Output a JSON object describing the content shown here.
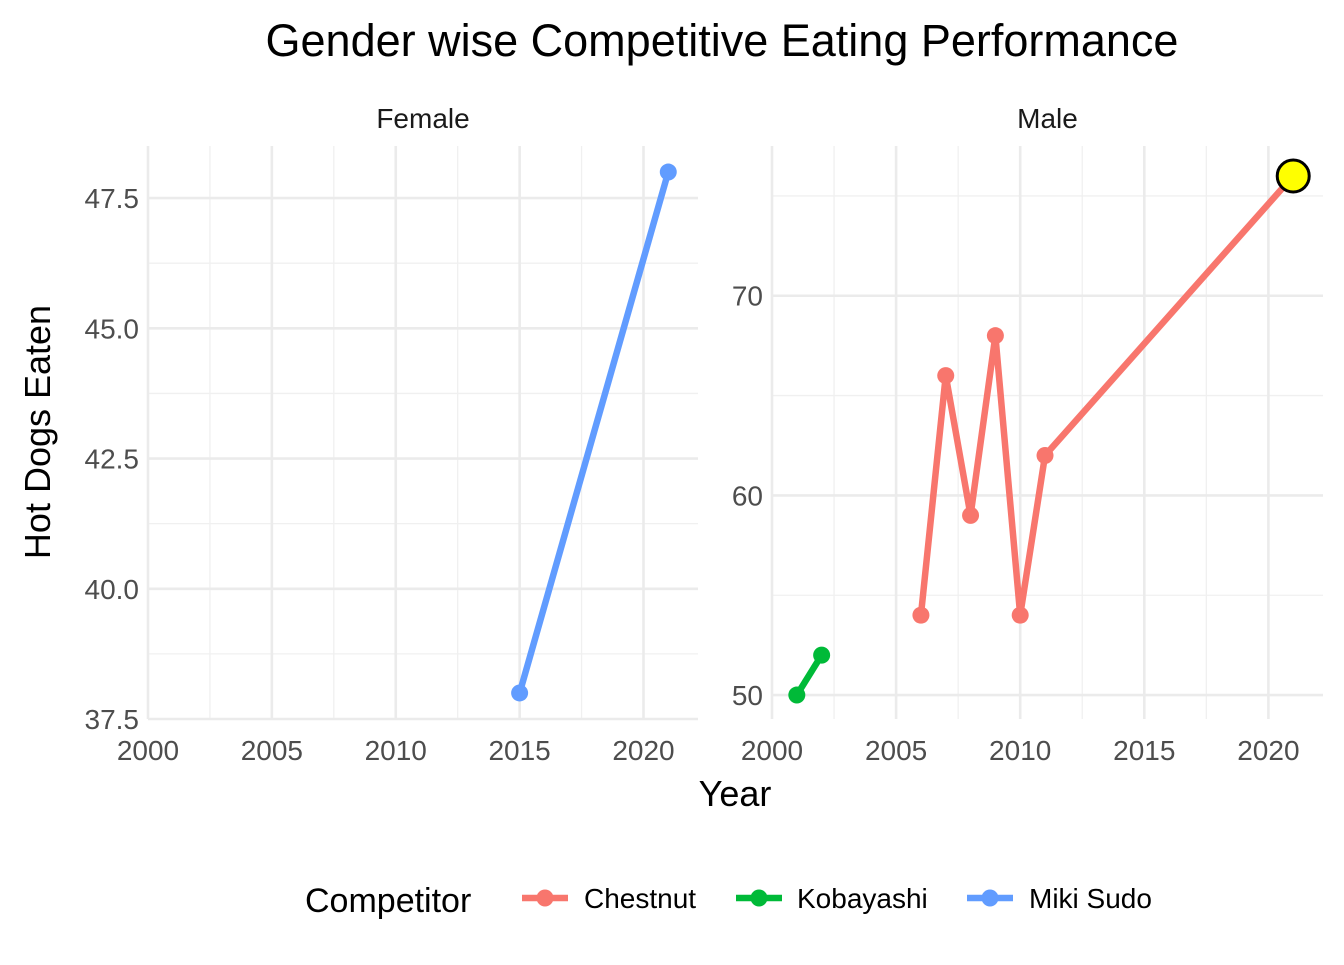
{
  "chart_data": {
    "type": "line",
    "title": "Gender wise Competitive Eating Performance",
    "xlabel": "Year",
    "ylabel": "Hot Dogs Eaten",
    "legend": {
      "title": "Competitor",
      "position": "bottom",
      "items": [
        {
          "name": "Chestnut",
          "color": "#F8766D"
        },
        {
          "name": "Kobayashi",
          "color": "#00BA38"
        },
        {
          "name": "Miki Sudo",
          "color": "#619CFF"
        }
      ]
    },
    "grid": true,
    "facets": [
      {
        "label": "Female",
        "xlim": [
          2000,
          2022.2
        ],
        "ylim": [
          37.5,
          48.5
        ],
        "xticks": [
          2000,
          2005,
          2010,
          2015,
          2020
        ],
        "yticks": [
          37.5,
          40.0,
          42.5,
          45.0,
          47.5
        ],
        "ytick_labels": [
          "37.5",
          "40.0",
          "42.5",
          "45.0",
          "47.5"
        ],
        "series": [
          {
            "name": "Miki Sudo",
            "color": "#619CFF",
            "x": [
              2015,
              2021
            ],
            "y": [
              38,
              48
            ]
          }
        ],
        "highlight": null
      },
      {
        "label": "Male",
        "xlim": [
          2000,
          2022.2
        ],
        "ylim": [
          48.8,
          77.5
        ],
        "xticks": [
          2000,
          2005,
          2010,
          2015,
          2020
        ],
        "yticks": [
          50,
          60,
          70
        ],
        "ytick_labels": [
          "50",
          "60",
          "70"
        ],
        "series": [
          {
            "name": "Kobayashi",
            "color": "#00BA38",
            "x": [
              2001,
              2002
            ],
            "y": [
              50,
              52
            ]
          },
          {
            "name": "Chestnut",
            "color": "#F8766D",
            "x": [
              2006,
              2007,
              2008,
              2009,
              2010,
              2011,
              2021
            ],
            "y": [
              54,
              66,
              59,
              68,
              54,
              62,
              76
            ]
          }
        ],
        "highlight": {
          "x": 2021,
          "y": 76,
          "fill": "#FFFF00",
          "stroke": "#000000"
        }
      }
    ]
  }
}
